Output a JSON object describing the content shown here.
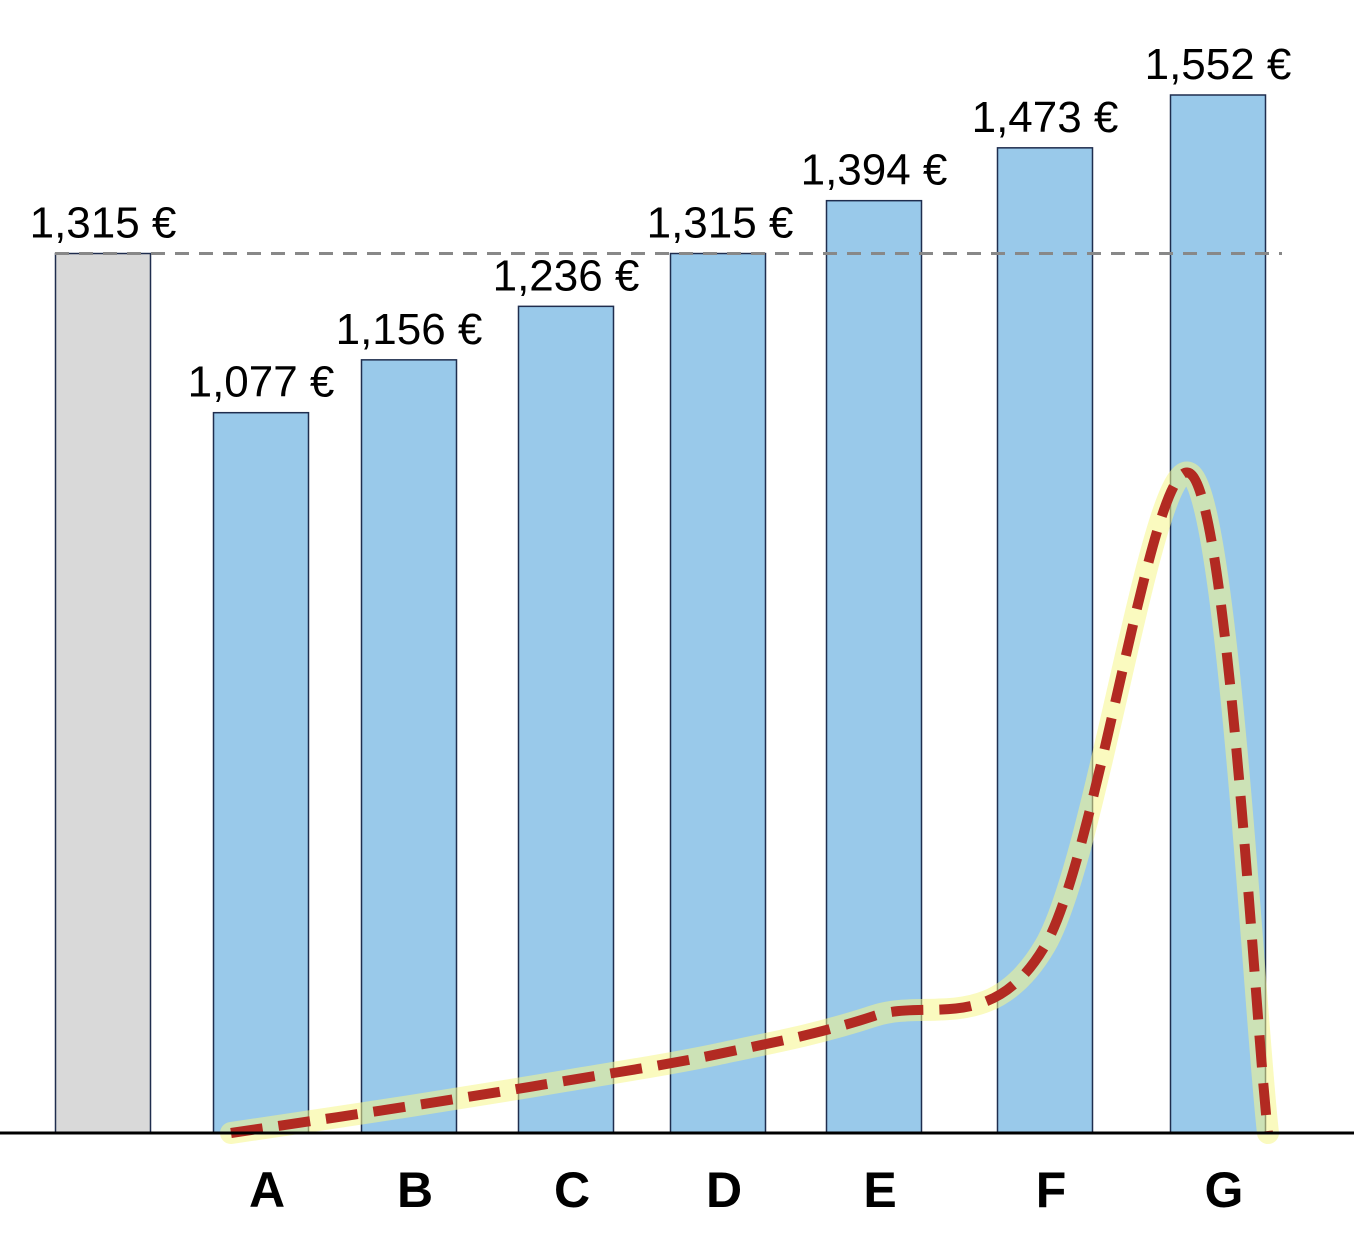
{
  "chart_data": {
    "type": "bar",
    "categories": [
      "",
      "A",
      "B",
      "C",
      "D",
      "E",
      "F",
      "G"
    ],
    "values": [
      1315,
      1077,
      1156,
      1236,
      1315,
      1394,
      1473,
      1552
    ],
    "value_labels": [
      "1,315 €",
      "1,077 €",
      "1,156 €",
      "1,236 €",
      "1,315 €",
      "1,394 €",
      "1,473 €",
      "1,552 €"
    ],
    "reference_line": {
      "value": 1315,
      "style": "dashed",
      "color": "#888888"
    },
    "ylim": [
      0,
      1552
    ],
    "grid": false,
    "legend": "none",
    "title": "",
    "xlabel": "",
    "ylabel": "",
    "colors": {
      "baseline_bar": "#d9d9d9",
      "bar": "#99c9ea",
      "bar_border": "#1f2d4e",
      "curve": "#b22a22",
      "curve_glow": "#f6f58a",
      "axis": "#000000"
    },
    "overlay_curve": {
      "style": "dashed",
      "points": [
        [
          "A",
          0
        ],
        [
          "B",
          40
        ],
        [
          "C",
          78
        ],
        [
          "D",
          118
        ],
        [
          "E",
          175
        ],
        [
          "F",
          280
        ],
        [
          "G",
          985
        ],
        [
          "G",
          0
        ]
      ]
    }
  }
}
